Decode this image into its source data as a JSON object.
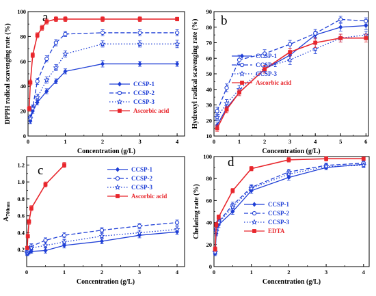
{
  "chart_data": [
    {
      "type": "line",
      "panel_label": "a",
      "xlabel": "Concentration (g/L)",
      "ylabel": "DPPH radical scavenging rate (%)",
      "xlim": [
        0,
        4.2
      ],
      "ylim": [
        0,
        100
      ],
      "xticks": [
        0,
        1,
        2,
        3,
        4
      ],
      "yticks": [
        0,
        20,
        40,
        60,
        80,
        100
      ],
      "legend_position": "bottom-right",
      "series": [
        {
          "name": "CCSP-1",
          "color": "#1f3fd6",
          "dash": "solid",
          "marker": "diamond",
          "x": [
            0.0625,
            0.125,
            0.25,
            0.5,
            0.75,
            1,
            2,
            3,
            4
          ],
          "y": [
            12,
            20,
            27,
            36,
            44,
            52,
            58,
            58,
            58
          ],
          "err": [
            2,
            2,
            2,
            2,
            2,
            2,
            2.5,
            2,
            2
          ]
        },
        {
          "name": "CCSP-2",
          "color": "#1f3fd6",
          "dash": "dash",
          "marker": "circle",
          "x": [
            0.0625,
            0.125,
            0.25,
            0.5,
            0.75,
            1,
            2,
            3,
            4
          ],
          "y": [
            15,
            23,
            44,
            62,
            75,
            82,
            83,
            83,
            83
          ],
          "err": [
            2,
            2,
            2.5,
            2.5,
            2.5,
            2,
            2.5,
            2.5,
            2.5
          ]
        },
        {
          "name": "CCSP-3",
          "color": "#1f3fd6",
          "dash": "dot",
          "marker": "star",
          "x": [
            0.0625,
            0.125,
            0.25,
            0.5,
            0.75,
            1,
            2,
            3,
            4
          ],
          "y": [
            14,
            22,
            31,
            45,
            55,
            66,
            74,
            74,
            74
          ],
          "err": [
            2,
            2,
            2.5,
            2.5,
            2.5,
            2.5,
            2.5,
            2.5,
            3
          ]
        },
        {
          "name": "Ascorbic acid",
          "color": "#e8262c",
          "dash": "solid",
          "marker": "square",
          "x": [
            0.03125,
            0.0625,
            0.125,
            0.25,
            0.375,
            0.5,
            0.75,
            1,
            2,
            3,
            4
          ],
          "y": [
            22,
            43,
            65,
            81,
            87,
            92,
            94,
            94,
            94,
            94,
            94
          ],
          "err": [
            2,
            2,
            2,
            2,
            2,
            2,
            2,
            2,
            2,
            2,
            1.5
          ]
        }
      ]
    },
    {
      "type": "line",
      "panel_label": "b",
      "xlabel": "Concentration (g/L)",
      "ylabel": "Hydroxyl radical scavenging rate (%)",
      "xlim": [
        0,
        6.1
      ],
      "ylim": [
        10,
        90
      ],
      "xticks": [
        0,
        1,
        2,
        3,
        4,
        5,
        6
      ],
      "yticks": [
        10,
        20,
        30,
        40,
        50,
        60,
        70,
        80,
        90
      ],
      "legend_position": "bottom-right",
      "series": [
        {
          "name": "CCSP-1",
          "color": "#1f3fd6",
          "dash": "solid",
          "marker": "diamond",
          "x": [
            0.125,
            0.5,
            1,
            2,
            3,
            4,
            5,
            6
          ],
          "y": [
            17,
            28,
            38,
            53,
            62,
            75,
            80,
            81
          ],
          "err": [
            2,
            2,
            2,
            2.5,
            2.5,
            2.5,
            2.5,
            2.5
          ]
        },
        {
          "name": "CCSP-2",
          "color": "#1f3fd6",
          "dash": "dash",
          "marker": "circle",
          "x": [
            0.125,
            0.5,
            1,
            2,
            3,
            4,
            5,
            6
          ],
          "y": [
            26,
            41,
            59,
            63,
            69,
            76,
            85,
            84
          ],
          "err": [
            2.5,
            2.5,
            3,
            2.5,
            2.5,
            2.5,
            2,
            2
          ]
        },
        {
          "name": "CCSP-3",
          "color": "#1f3fd6",
          "dash": "dot",
          "marker": "star",
          "x": [
            0.125,
            0.5,
            1,
            2,
            3,
            4,
            5,
            6
          ],
          "y": [
            22,
            31,
            40,
            54,
            59,
            66,
            73,
            75
          ],
          "err": [
            2,
            2.5,
            2.5,
            2.5,
            3,
            3,
            2.5,
            2.5
          ]
        },
        {
          "name": "Ascorbic acid",
          "color": "#e8262c",
          "dash": "solid",
          "marker": "square",
          "x": [
            0.125,
            0.5,
            1,
            2,
            3,
            4,
            5,
            6
          ],
          "y": [
            15,
            27,
            38,
            53,
            64,
            70,
            73,
            73
          ],
          "err": [
            2,
            2,
            2,
            2.5,
            2.5,
            3,
            2.5,
            2.5
          ]
        }
      ]
    },
    {
      "type": "line",
      "panel_label": "c",
      "xlabel": "Concentration (g/L)",
      "ylabel": "A700nm",
      "xlim": [
        0,
        4.2
      ],
      "ylim": [
        0,
        1.3
      ],
      "xticks": [
        0,
        1,
        2,
        3,
        4
      ],
      "yticks": [
        0.2,
        0.4,
        0.6,
        0.8,
        1.0,
        1.2
      ],
      "legend_position": "top-right",
      "series": [
        {
          "name": "CCSP-1",
          "color": "#1f3fd6",
          "dash": "solid",
          "marker": "diamond",
          "x": [
            0.015625,
            0.03125,
            0.0625,
            0.125,
            0.5,
            1,
            2,
            3,
            4
          ],
          "y": [
            0.15,
            0.16,
            0.17,
            0.18,
            0.19,
            0.25,
            0.3,
            0.37,
            0.41
          ],
          "err": [
            0.02,
            0.02,
            0.02,
            0.02,
            0.03,
            0.03,
            0.03,
            0.03,
            0.03
          ]
        },
        {
          "name": "CCSP-2",
          "color": "#1f3fd6",
          "dash": "dash",
          "marker": "circle",
          "x": [
            0.015625,
            0.03125,
            0.0625,
            0.125,
            0.5,
            1,
            2,
            3,
            4
          ],
          "y": [
            0.17,
            0.19,
            0.21,
            0.24,
            0.31,
            0.37,
            0.43,
            0.48,
            0.52
          ],
          "err": [
            0.02,
            0.02,
            0.02,
            0.03,
            0.03,
            0.03,
            0.03,
            0.03,
            0.03
          ]
        },
        {
          "name": "CCSP-3",
          "color": "#1f3fd6",
          "dash": "dot",
          "marker": "star",
          "x": [
            0.015625,
            0.03125,
            0.0625,
            0.125,
            0.5,
            1,
            2,
            3,
            4
          ],
          "y": [
            0.16,
            0.18,
            0.2,
            0.22,
            0.25,
            0.29,
            0.36,
            0.4,
            0.44
          ],
          "err": [
            0.02,
            0.02,
            0.02,
            0.02,
            0.03,
            0.03,
            0.03,
            0.03,
            0.03
          ]
        },
        {
          "name": "Ascorbic acid",
          "color": "#e8262c",
          "dash": "solid",
          "marker": "square",
          "x": [
            0.015625,
            0.03125,
            0.0625,
            0.125,
            0.5,
            1
          ],
          "y": [
            0.22,
            0.36,
            0.53,
            0.69,
            0.97,
            1.2
          ],
          "err": [
            0.02,
            0.02,
            0.03,
            0.03,
            0.03,
            0.03
          ]
        }
      ]
    },
    {
      "type": "line",
      "panel_label": "d",
      "xlabel": "Concentration (g/L)",
      "ylabel": "Chelating rate (%)",
      "xlim": [
        0,
        4.15
      ],
      "ylim": [
        0,
        100
      ],
      "xticks": [
        0,
        1,
        2,
        3,
        4
      ],
      "yticks": [
        0,
        20,
        40,
        60,
        80,
        100
      ],
      "legend_position": "bottom-right",
      "series": [
        {
          "name": "CCSP-1",
          "color": "#1f3fd6",
          "dash": "solid",
          "marker": "diamond",
          "x": [
            0.03125,
            0.0625,
            0.125,
            0.5,
            1,
            2,
            3,
            4
          ],
          "y": [
            12,
            30,
            38,
            50,
            69,
            81,
            90,
            93
          ],
          "err": [
            2,
            2,
            2.5,
            2.5,
            2.5,
            2.5,
            2,
            2
          ]
        },
        {
          "name": "CCSP-2",
          "color": "#1f3fd6",
          "dash": "dash",
          "marker": "circle",
          "x": [
            0.03125,
            0.0625,
            0.125,
            0.5,
            1,
            2,
            3,
            4
          ],
          "y": [
            14,
            34,
            41,
            56,
            72,
            86,
            92,
            94
          ],
          "err": [
            2,
            2,
            2.5,
            2.5,
            2.5,
            2.5,
            2,
            2
          ]
        },
        {
          "name": "CCSP-3",
          "color": "#1f3fd6",
          "dash": "dot",
          "marker": "star",
          "x": [
            0.03125,
            0.0625,
            0.125,
            0.5,
            1,
            2,
            3,
            4
          ],
          "y": [
            13,
            32,
            40,
            54,
            71,
            84,
            91,
            92
          ],
          "err": [
            2,
            2,
            2.5,
            2.5,
            2.5,
            2.5,
            2,
            2
          ]
        },
        {
          "name": "EDTA",
          "color": "#e8262c",
          "dash": "solid",
          "marker": "square",
          "x": [
            0.03125,
            0.0625,
            0.125,
            0.5,
            1,
            2,
            3,
            4
          ],
          "y": [
            16,
            38,
            45,
            69,
            89,
            97,
            98,
            98
          ],
          "err": [
            2,
            2,
            2,
            2,
            2,
            2,
            2,
            1.5
          ]
        }
      ]
    }
  ]
}
